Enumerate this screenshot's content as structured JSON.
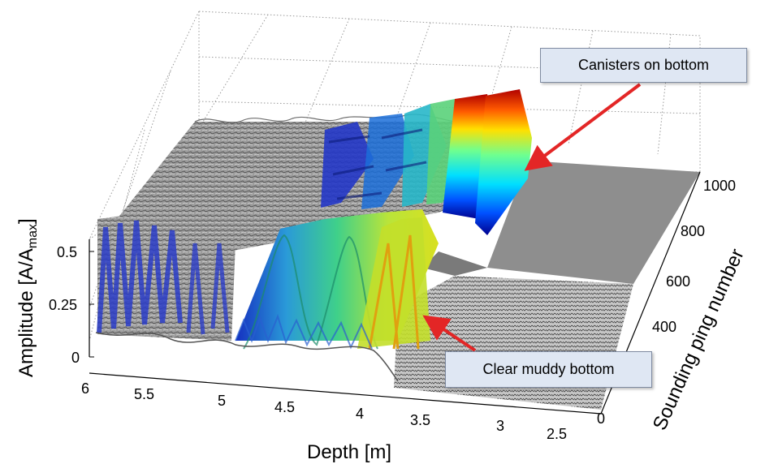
{
  "chart_data": {
    "type": "surface-3d",
    "zlabel_main": "Amplitude  [A/A",
    "zlabel_sub": "max",
    "zlabel_end": "]",
    "xlabel": "Depth [m]",
    "ylabel": "Sounding ping number",
    "x_ticks": [
      "6",
      "5.5",
      "5",
      "4.5",
      "4",
      "3.5",
      "3",
      "2.5"
    ],
    "y_ticks": [
      "0",
      "400",
      "600",
      "800",
      "1000"
    ],
    "z_ticks": [
      "0",
      "0.25",
      "0.5"
    ],
    "xlim": [
      2.5,
      6
    ],
    "ylim": [
      0,
      1000
    ],
    "zlim": [
      0,
      0.5
    ],
    "colormap": "jet",
    "colors": {
      "gray_surface": "#9a9a9a",
      "callout_bg": "#dfe7f3",
      "arrow": "#e32626"
    },
    "annotations": [
      {
        "id": "canisters",
        "text": "Canisters on bottom"
      },
      {
        "id": "muddy",
        "text": "Clear muddy bottom"
      }
    ]
  }
}
